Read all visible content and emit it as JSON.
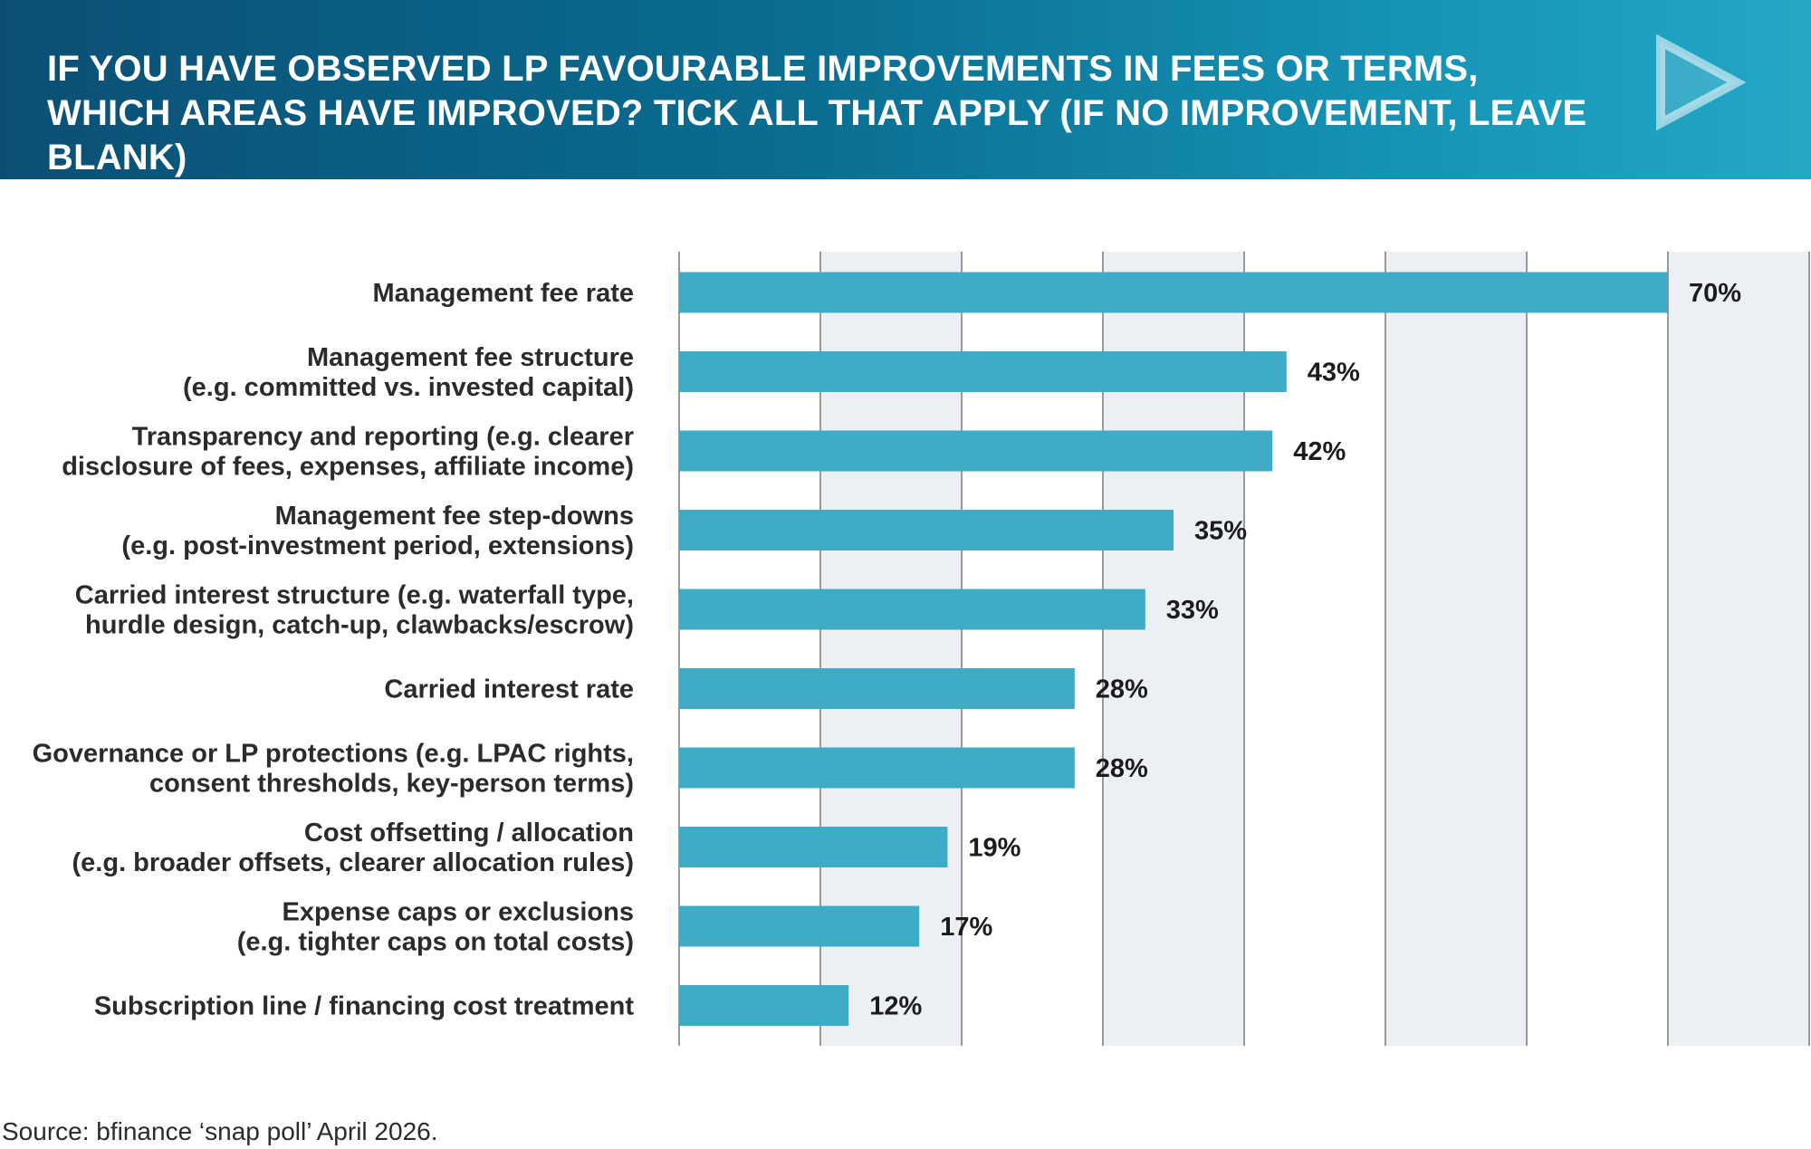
{
  "header": {
    "title": "IF YOU HAVE OBSERVED LP FAVOURABLE IMPROVEMENTS IN FEES OR TERMS, WHICH AREAS HAVE IMPROVED? TICK ALL THAT APPLY (IF NO IMPROVEMENT, LEAVE BLANK)",
    "logo_icon": "play-triangle-icon"
  },
  "footer": {
    "source": "Source: bfinance ‘snap poll’ April 2026."
  },
  "colors": {
    "bar": "#3eabc7",
    "header_start": "#0b4f74",
    "header_end": "#23a8c6",
    "band": "#eceff4",
    "gridline": "#9a9a9a"
  },
  "chart_data": {
    "type": "bar",
    "orientation": "horizontal",
    "title": "IF YOU HAVE OBSERVED LP FAVOURABLE IMPROVEMENTS IN FEES OR TERMS, WHICH AREAS HAVE IMPROVED? TICK ALL THAT APPLY (IF NO IMPROVEMENT, LEAVE BLANK)",
    "categories": [
      [
        "Management fee rate"
      ],
      [
        "Management fee structure",
        "(e.g. committed vs. invested capital)"
      ],
      [
        "Transparency and reporting (e.g. clearer",
        "disclosure of fees, expenses, affiliate income)"
      ],
      [
        "Management fee step-downs",
        "(e.g. post-investment period, extensions)"
      ],
      [
        "Carried interest structure (e.g. waterfall type,",
        "hurdle design, catch-up, clawbacks/escrow)"
      ],
      [
        "Carried interest rate"
      ],
      [
        "Governance or LP protections (e.g. LPAC rights,",
        "consent thresholds, key-person terms)"
      ],
      [
        "Cost offsetting / allocation",
        "(e.g. broader offsets, clearer allocation rules)"
      ],
      [
        "Expense caps or exclusions",
        "(e.g. tighter caps on total costs)"
      ],
      [
        "Subscription line / financing cost treatment"
      ]
    ],
    "values": [
      70,
      43,
      42,
      35,
      33,
      28,
      28,
      19,
      17,
      12
    ],
    "value_labels": [
      "70%",
      "43%",
      "42%",
      "35%",
      "33%",
      "28%",
      "28%",
      "19%",
      "17%",
      "12%"
    ],
    "xlim": [
      0,
      80
    ],
    "x_gridlines": [
      0,
      10,
      20,
      30,
      40,
      50,
      60,
      70,
      80
    ],
    "x_tick_labels_shown": false,
    "grid": true,
    "legend": "none",
    "unit": "%"
  }
}
